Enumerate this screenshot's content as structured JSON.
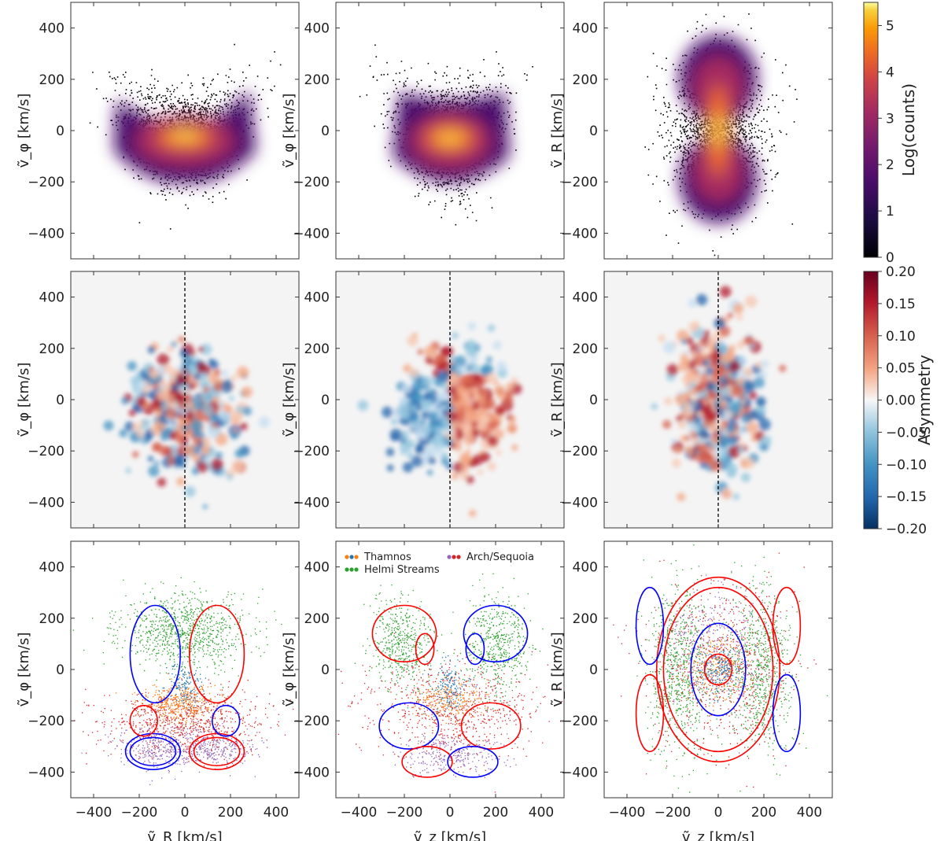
{
  "chart_data": [
    {
      "type": "heatmap",
      "panel": "row1-col1",
      "xlabel": "",
      "ylabel": "ṽ_φ [km/s]",
      "xlim": [
        -500,
        500
      ],
      "ylim": [
        -500,
        500
      ],
      "xticks": [
        -400,
        -200,
        0,
        200,
        400
      ],
      "yticks": [
        -400,
        -200,
        0,
        200,
        400
      ],
      "shape": "butterfly",
      "colorbar": "log_counts"
    },
    {
      "type": "heatmap",
      "panel": "row1-col2",
      "xlabel": "",
      "ylabel": "ṽ_φ [km/s]",
      "xlim": [
        -500,
        500
      ],
      "ylim": [
        -500,
        500
      ],
      "xticks": [
        -400,
        -200,
        0,
        200,
        400
      ],
      "yticks": [
        -400,
        -200,
        0,
        200,
        400
      ],
      "shape": "bowl",
      "colorbar": "log_counts"
    },
    {
      "type": "heatmap",
      "panel": "row1-col3",
      "xlabel": "",
      "ylabel": "ṽ_R [km/s]",
      "xlim": [
        -500,
        500
      ],
      "ylim": [
        -500,
        500
      ],
      "xticks": [
        -400,
        -200,
        0,
        200,
        400
      ],
      "yticks": [
        -400,
        -200,
        0,
        200,
        400
      ],
      "shape": "peanut",
      "colorbar": "log_counts"
    },
    {
      "type": "heatmap",
      "panel": "row2-col1",
      "xlabel": "",
      "ylabel": "ṽ_φ [km/s]",
      "xlim": [
        -500,
        500
      ],
      "ylim": [
        -500,
        500
      ],
      "xticks": [
        -400,
        -200,
        0,
        200,
        400
      ],
      "yticks": [
        -400,
        -200,
        0,
        200,
        400
      ],
      "dashed_line_x": 0,
      "colorbar": "asymmetry"
    },
    {
      "type": "heatmap",
      "panel": "row2-col2",
      "xlabel": "",
      "ylabel": "ṽ_φ [km/s]",
      "xlim": [
        -500,
        500
      ],
      "ylim": [
        -500,
        500
      ],
      "xticks": [
        -400,
        -200,
        0,
        200,
        400
      ],
      "yticks": [
        -400,
        -200,
        0,
        200,
        400
      ],
      "dashed_line_x": 0,
      "colorbar": "asymmetry"
    },
    {
      "type": "heatmap",
      "panel": "row2-col3",
      "xlabel": "",
      "ylabel": "ṽ_R [km/s]",
      "xlim": [
        -500,
        500
      ],
      "ylim": [
        -500,
        500
      ],
      "xticks": [
        -400,
        -200,
        0,
        200,
        400
      ],
      "yticks": [
        -400,
        -200,
        0,
        200,
        400
      ],
      "dashed_line_x": 0,
      "colorbar": "asymmetry"
    },
    {
      "type": "scatter",
      "panel": "row3-col1",
      "xlabel": "ṽ_R [km/s]",
      "ylabel": "ṽ_φ [km/s]",
      "xlim": [
        -500,
        500
      ],
      "ylim": [
        -500,
        500
      ],
      "xticks": [
        -400,
        -200,
        0,
        200,
        400
      ],
      "yticks": [
        -400,
        -200,
        0,
        200,
        400
      ],
      "contours": [
        "blue",
        "red"
      ]
    },
    {
      "type": "scatter",
      "panel": "row3-col2",
      "xlabel": "ṽ_z [km/s]",
      "ylabel": "ṽ_φ [km/s]",
      "xlim": [
        -500,
        500
      ],
      "ylim": [
        -500,
        500
      ],
      "xticks": [
        -400,
        -200,
        0,
        200,
        400
      ],
      "yticks": [
        -400,
        -200,
        0,
        200,
        400
      ],
      "contours": [
        "blue",
        "red"
      ],
      "legend": [
        {
          "name": "Thamnos",
          "colors": [
            "#ff7f0e",
            "#1f77b4",
            "#ff7f0e"
          ]
        },
        {
          "name": "Helmi Streams",
          "colors": [
            "#2ca02c",
            "#2ca02c",
            "#2ca02c"
          ]
        },
        {
          "name": "Arch/Sequoia",
          "colors": [
            "#9467bd",
            "#d62728",
            "#d62728"
          ]
        }
      ],
      "legend_position": "top"
    },
    {
      "type": "scatter",
      "panel": "row3-col3",
      "xlabel": "ṽ_z [km/s]",
      "ylabel": "ṽ_R [km/s]",
      "xlim": [
        -500,
        500
      ],
      "ylim": [
        -500,
        500
      ],
      "xticks": [
        -400,
        -200,
        0,
        200,
        400
      ],
      "yticks": [
        -400,
        -200,
        0,
        200,
        400
      ],
      "contours": [
        "blue",
        "red"
      ]
    }
  ],
  "colorbars": {
    "log_counts": {
      "label": "Log(counts)",
      "range": [
        0,
        5.5
      ],
      "ticks": [
        0,
        1,
        2,
        3,
        4,
        5
      ],
      "tick_labels": [
        "0",
        "1",
        "2",
        "3",
        "4",
        "5"
      ],
      "colormap": "inferno"
    },
    "asymmetry": {
      "label": "Asymmetry",
      "range": [
        -0.2,
        0.2
      ],
      "ticks": [
        0.2,
        0.15,
        0.1,
        0.05,
        0.0,
        -0.05,
        -0.1,
        -0.15,
        -0.2
      ],
      "tick_labels": [
        "0.20",
        "0.15",
        "0.10",
        "0.05",
        "0.00",
        "−0.05",
        "−0.10",
        "−0.15",
        "−0.20"
      ],
      "colormap": "RdBu_r"
    }
  },
  "colors": {
    "thamnos": "#ff7f0e",
    "thamnos_2": "#1f77b4",
    "helmi": "#2ca02c",
    "arch": "#d62728",
    "sequoia": "#9467bd",
    "contour_blue": "#0000ff",
    "contour_red": "#ff0000"
  },
  "tick_labels": {
    "y": [
      "400",
      "200",
      "0",
      "−200",
      "−400"
    ],
    "x": [
      "−400",
      "−200",
      "0",
      "200",
      "400"
    ]
  }
}
